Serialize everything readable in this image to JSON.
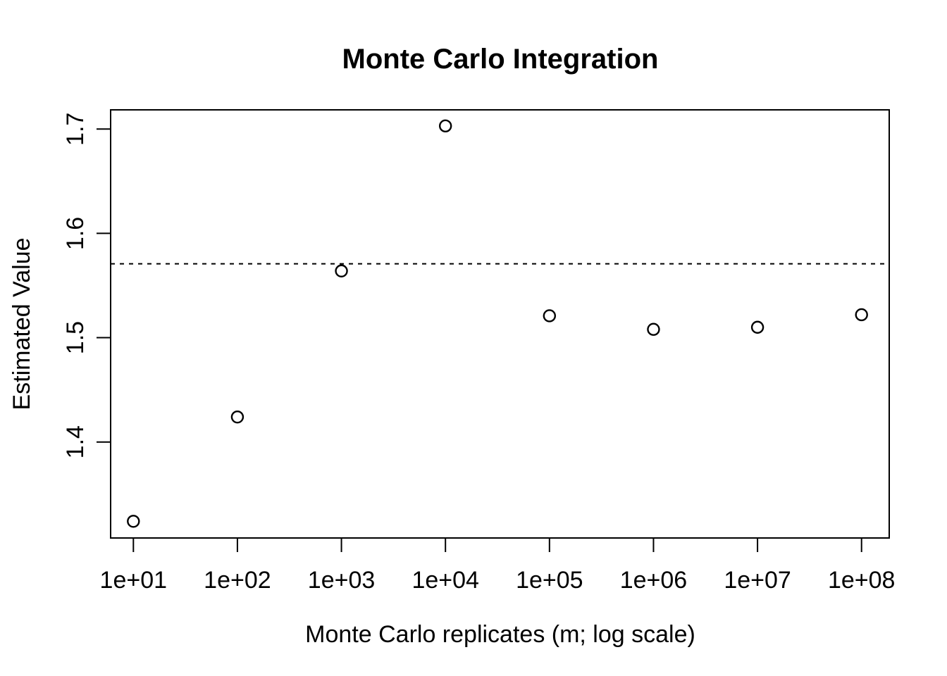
{
  "chart_data": {
    "type": "scatter",
    "title": "Monte Carlo Integration",
    "xlabel": "Monte Carlo replicates (m; log scale)",
    "ylabel": "Estimated Value",
    "x_scale": "log10",
    "x": [
      10,
      100,
      1000,
      10000,
      100000,
      1000000,
      10000000,
      100000000
    ],
    "x_tick_labels": [
      "1e+01",
      "1e+02",
      "1e+03",
      "1e+04",
      "1e+05",
      "1e+06",
      "1e+07",
      "1e+08"
    ],
    "y_values": [
      1.324,
      1.424,
      1.564,
      1.703,
      1.521,
      1.508,
      1.51,
      1.522
    ],
    "y_ticks": [
      1.4,
      1.5,
      1.6,
      1.7
    ],
    "y_tick_labels": [
      "1.4",
      "1.5",
      "1.6",
      "1.7"
    ],
    "ylim": [
      1.308,
      1.718
    ],
    "xlim_log10": [
      0.781,
      8.266
    ],
    "reference_line": {
      "value": 1.5708,
      "style": "dotted"
    },
    "marker": "open-circle",
    "legend": "none",
    "grid": "off",
    "colors": {
      "foreground": "#000000",
      "background": "#ffffff"
    }
  }
}
